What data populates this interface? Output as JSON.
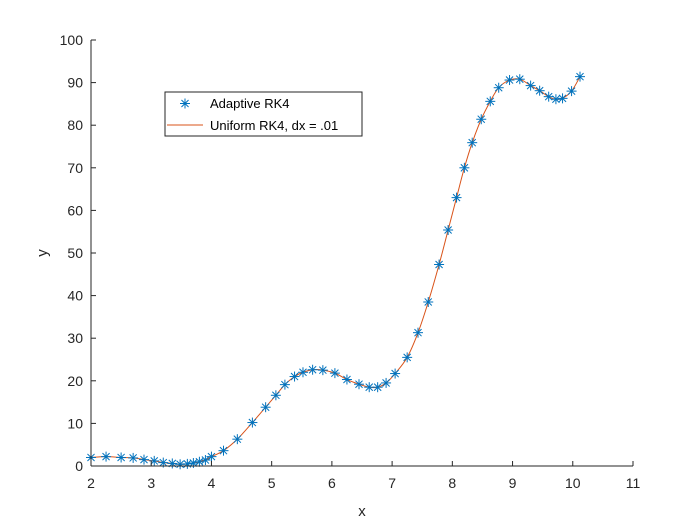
{
  "chart_data": {
    "type": "line",
    "xlabel": "x",
    "ylabel": "y",
    "xlim": [
      2,
      11
    ],
    "ylim": [
      0,
      100
    ],
    "xticks": [
      2,
      3,
      4,
      5,
      6,
      7,
      8,
      9,
      10,
      11
    ],
    "yticks": [
      0,
      10,
      20,
      30,
      40,
      50,
      60,
      70,
      80,
      90,
      100
    ],
    "grid": false,
    "legend_position": "upper-left",
    "series": [
      {
        "name": "Adaptive RK4",
        "style": "markers",
        "marker": "asterisk",
        "color": "#0072BD",
        "x": [
          2.0,
          2.25,
          2.5,
          2.7,
          2.88,
          3.05,
          3.2,
          3.35,
          3.48,
          3.6,
          3.7,
          3.8,
          3.9,
          4.0,
          4.2,
          4.43,
          4.68,
          4.9,
          5.07,
          5.22,
          5.38,
          5.52,
          5.68,
          5.85,
          6.05,
          6.25,
          6.45,
          6.62,
          6.76,
          6.9,
          7.05,
          7.25,
          7.43,
          7.6,
          7.78,
          7.93,
          8.07,
          8.2,
          8.33,
          8.48,
          8.63,
          8.77,
          8.95,
          9.12,
          9.3,
          9.45,
          9.6,
          9.72,
          9.83,
          9.98,
          10.12
        ],
        "y": [
          2.0,
          2.2,
          2.0,
          1.9,
          1.5,
          1.2,
          0.8,
          0.6,
          0.4,
          0.5,
          0.7,
          1.0,
          1.4,
          2.2,
          3.6,
          6.3,
          10.2,
          13.8,
          16.6,
          19.1,
          21.0,
          22.0,
          22.6,
          22.5,
          21.8,
          20.3,
          19.2,
          18.5,
          18.5,
          19.5,
          21.7,
          25.5,
          31.3,
          38.5,
          47.3,
          55.4,
          63.0,
          70.0,
          75.9,
          81.4,
          85.6,
          88.8,
          90.6,
          90.8,
          89.3,
          88.1,
          86.7,
          86.1,
          86.3,
          88.0,
          91.4
        ]
      },
      {
        "name": "Uniform RK4, dx = .01",
        "style": "line",
        "color": "#D95319",
        "x": [
          2.0,
          2.25,
          2.5,
          2.7,
          2.88,
          3.05,
          3.2,
          3.35,
          3.48,
          3.6,
          3.7,
          3.8,
          3.9,
          4.0,
          4.2,
          4.43,
          4.68,
          4.9,
          5.07,
          5.22,
          5.38,
          5.52,
          5.68,
          5.85,
          6.05,
          6.25,
          6.45,
          6.62,
          6.76,
          6.9,
          7.05,
          7.25,
          7.43,
          7.6,
          7.78,
          7.93,
          8.07,
          8.2,
          8.33,
          8.48,
          8.63,
          8.77,
          8.95,
          9.12,
          9.3,
          9.45,
          9.6,
          9.72,
          9.83,
          9.98,
          10.12
        ],
        "y": [
          2.0,
          2.2,
          2.0,
          1.9,
          1.5,
          1.2,
          0.8,
          0.6,
          0.4,
          0.5,
          0.7,
          1.0,
          1.4,
          2.2,
          3.6,
          6.3,
          10.2,
          13.8,
          16.6,
          19.1,
          21.0,
          22.0,
          22.6,
          22.5,
          21.8,
          20.3,
          19.2,
          18.5,
          18.5,
          19.5,
          21.7,
          25.5,
          31.3,
          38.5,
          47.3,
          55.4,
          63.0,
          70.0,
          75.9,
          81.4,
          85.6,
          88.8,
          90.6,
          90.8,
          89.3,
          88.1,
          86.7,
          86.1,
          86.3,
          88.0,
          91.4
        ]
      }
    ]
  }
}
